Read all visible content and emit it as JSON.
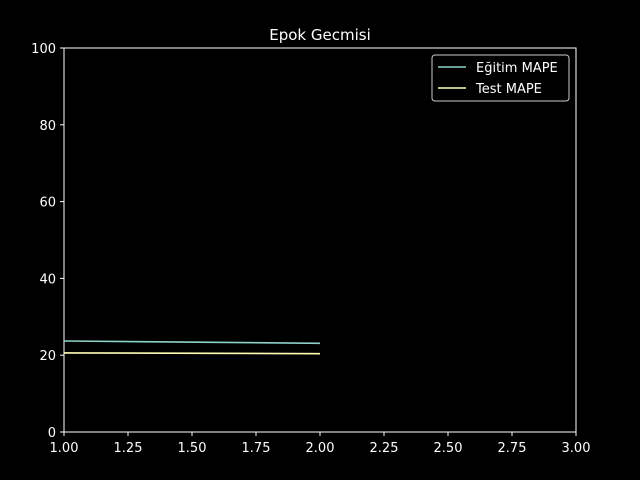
{
  "chart_data": {
    "type": "line",
    "title": "Epok Gecmisi",
    "xlabel": "",
    "ylabel": "",
    "xlim": [
      1.0,
      3.0
    ],
    "ylim": [
      0,
      100
    ],
    "xticks": [
      "1.00",
      "1.25",
      "1.50",
      "1.75",
      "2.00",
      "2.25",
      "2.50",
      "2.75",
      "3.00"
    ],
    "yticks": [
      "0",
      "20",
      "40",
      "60",
      "80",
      "100"
    ],
    "grid": false,
    "legend_position": "top-right",
    "background": "#000000",
    "axis_color": "#ffffff",
    "series": [
      {
        "name": "Eğitim MAPE",
        "color": "#8dd3c7",
        "x": [
          1,
          2
        ],
        "y": [
          23.7,
          23.1
        ]
      },
      {
        "name": "Test MAPE",
        "color": "#feffb3",
        "x": [
          1,
          2
        ],
        "y": [
          20.6,
          20.4
        ]
      }
    ]
  }
}
